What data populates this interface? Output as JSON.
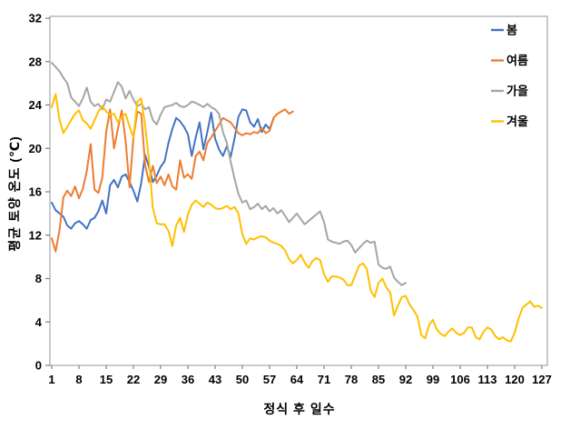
{
  "chart_data": {
    "type": "line",
    "title": "",
    "xlabel": "정식 후 일수",
    "ylabel": "평균 토양 온도 (℃)",
    "xlim": [
      1,
      127
    ],
    "ylim": [
      0,
      32
    ],
    "x_ticks": [
      1,
      8,
      15,
      22,
      29,
      36,
      43,
      50,
      57,
      64,
      71,
      78,
      85,
      92,
      99,
      106,
      113,
      120,
      127
    ],
    "y_ticks": [
      0,
      4,
      8,
      12,
      16,
      20,
      24,
      28,
      32
    ],
    "grid": false,
    "legend_position": "top-right-inside",
    "series": [
      {
        "name": "봄",
        "color": "#4472C4",
        "start_day": 1,
        "values": [
          15.0,
          14.3,
          14.0,
          13.7,
          12.9,
          12.6,
          13.1,
          13.3,
          13.0,
          12.6,
          13.4,
          13.6,
          14.2,
          15.2,
          14.0,
          16.6,
          17.1,
          16.4,
          17.4,
          17.6,
          16.9,
          16.1,
          15.1,
          16.8,
          19.4,
          18.3,
          16.9,
          17.5,
          18.3,
          18.8,
          20.5,
          21.8,
          22.8,
          22.5,
          22.0,
          21.3,
          19.3,
          21.0,
          22.4,
          19.9,
          21.5,
          23.3,
          20.9,
          19.9,
          19.3,
          20.2,
          19.2,
          20.9,
          22.9,
          23.6,
          23.5,
          22.4,
          22.0,
          22.7,
          21.5,
          22.2,
          21.8,
          22.7
        ]
      },
      {
        "name": "여름",
        "color": "#ED7D31",
        "start_day": 1,
        "values": [
          11.7,
          10.5,
          12.5,
          15.5,
          16.1,
          15.6,
          16.5,
          15.4,
          16.3,
          17.9,
          20.4,
          16.2,
          15.9,
          17.3,
          21.5,
          23.6,
          20.0,
          21.8,
          23.5,
          20.7,
          16.4,
          21.0,
          23.4,
          23.2,
          18.5,
          16.9,
          18.4,
          16.8,
          17.4,
          16.6,
          17.6,
          16.5,
          16.2,
          18.9,
          17.3,
          17.6,
          17.2,
          19.3,
          19.7,
          18.9,
          20.5,
          21.0,
          21.6,
          22.2,
          22.8,
          22.6,
          22.4,
          21.9,
          21.4,
          21.2,
          21.4,
          21.3,
          21.5,
          21.4,
          21.9,
          21.4,
          21.6,
          22.8,
          23.2,
          23.4,
          23.6,
          23.2,
          23.4
        ]
      },
      {
        "name": "가을",
        "color": "#A5A5A5",
        "start_day": 1,
        "values": [
          27.9,
          27.5,
          27.1,
          26.5,
          26.0,
          24.7,
          24.3,
          23.9,
          24.6,
          25.6,
          24.3,
          23.9,
          24.1,
          23.6,
          24.5,
          24.3,
          25.2,
          26.1,
          25.7,
          24.6,
          25.3,
          24.5,
          23.9,
          24.1,
          23.6,
          23.8,
          22.6,
          22.2,
          23.1,
          23.8,
          23.9,
          24.0,
          24.2,
          23.9,
          23.8,
          24.0,
          24.3,
          24.2,
          24.0,
          23.8,
          24.1,
          23.8,
          23.6,
          23.2,
          21.5,
          20.5,
          18.8,
          17.2,
          15.8,
          15.0,
          15.2,
          14.4,
          14.6,
          14.9,
          14.4,
          14.7,
          14.2,
          14.5,
          14.0,
          14.3,
          13.8,
          13.2,
          13.6,
          14.0,
          13.5,
          13.0,
          13.3,
          13.6,
          13.9,
          14.2,
          13.2,
          11.6,
          11.4,
          11.3,
          11.2,
          11.4,
          11.5,
          11.1,
          10.4,
          10.8,
          11.2,
          11.5,
          11.3,
          11.4,
          9.3,
          9.0,
          8.9,
          9.1,
          8.1,
          7.7,
          7.4,
          7.6
        ]
      },
      {
        "name": "겨울",
        "color": "#FFC000",
        "start_day": 1,
        "values": [
          23.8,
          25.0,
          22.6,
          21.4,
          22.0,
          22.6,
          23.2,
          23.5,
          22.6,
          22.3,
          21.8,
          22.6,
          23.4,
          23.9,
          23.4,
          23.1,
          23.2,
          22.4,
          22.9,
          23.2,
          22.0,
          21.0,
          24.3,
          24.6,
          22.1,
          19.0,
          14.5,
          13.1,
          13.0,
          13.0,
          12.4,
          11.0,
          12.9,
          13.6,
          12.3,
          13.9,
          14.8,
          15.2,
          14.9,
          14.6,
          15.0,
          14.8,
          14.5,
          14.4,
          14.5,
          14.7,
          14.4,
          14.6,
          14.0,
          12.1,
          11.2,
          11.7,
          11.6,
          11.8,
          11.9,
          11.8,
          11.5,
          11.3,
          11.2,
          11.0,
          10.6,
          9.8,
          9.4,
          9.7,
          10.2,
          9.5,
          9.0,
          9.6,
          9.9,
          9.7,
          8.4,
          7.7,
          8.2,
          8.2,
          8.1,
          7.9,
          7.4,
          7.4,
          8.3,
          9.2,
          9.4,
          8.9,
          6.9,
          6.3,
          7.6,
          8.0,
          7.2,
          6.7,
          4.6,
          5.5,
          6.3,
          6.4,
          5.6,
          5.1,
          4.5,
          2.8,
          2.5,
          3.7,
          4.2,
          3.3,
          2.9,
          2.7,
          3.1,
          3.4,
          3.0,
          2.8,
          3.0,
          3.5,
          3.5,
          2.6,
          2.4,
          3.1,
          3.5,
          3.3,
          2.7,
          2.4,
          2.6,
          2.3,
          2.2,
          3.0,
          4.3,
          5.3,
          5.6,
          5.9,
          5.4,
          5.5,
          5.3
        ]
      }
    ]
  }
}
